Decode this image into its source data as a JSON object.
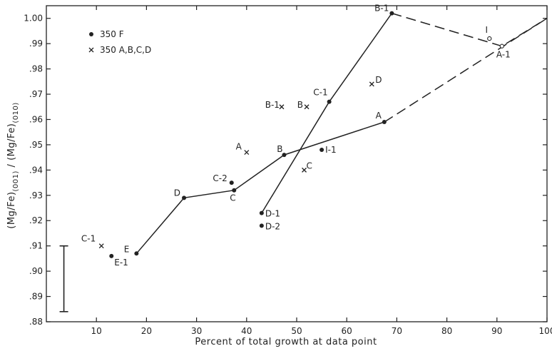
{
  "chart_data": {
    "type": "scatter",
    "title": "",
    "xlabel": "Percent of total growth at data point",
    "ylabel": "(Mg/Fe)(001) / (Mg/Fe)(010)",
    "ylabel_parts": {
      "a": "(Mg/Fe)",
      "a_sub": "(001)",
      "slash": " / ",
      "b": "(Mg/Fe)",
      "b_sub": "(010)"
    },
    "xlim": [
      0,
      100
    ],
    "ylim": [
      0.88,
      1.005
    ],
    "x_ticks": [
      10,
      20,
      30,
      40,
      50,
      60,
      70,
      80,
      90,
      100
    ],
    "y_ticks": [
      0.88,
      0.89,
      0.9,
      0.91,
      0.92,
      0.93,
      0.94,
      0.95,
      0.96,
      0.97,
      0.98,
      0.99,
      1.0
    ],
    "y_tick_labels": [
      ".88",
      ".89",
      ".90",
      ".91",
      ".92",
      ".93",
      ".94",
      ".95",
      ".96",
      ".97",
      ".98",
      ".99",
      "1.00"
    ],
    "grid": false,
    "legend_position": "top-left",
    "legend": [
      {
        "marker": "dot",
        "label": "350 F"
      },
      {
        "marker": "cross",
        "label": "350 A,B,C,D"
      }
    ],
    "series": [
      {
        "name": "350 F",
        "marker": "dot",
        "points": [
          {
            "label": "E",
            "x": 18,
            "y": 0.907
          },
          {
            "label": "E-1",
            "x": 13,
            "y": 0.906
          },
          {
            "label": "D",
            "x": 27.5,
            "y": 0.929
          },
          {
            "label": "C",
            "x": 37.5,
            "y": 0.932
          },
          {
            "label": "C-2",
            "x": 37,
            "y": 0.935
          },
          {
            "label": "B",
            "x": 47.5,
            "y": 0.946
          },
          {
            "label": "A",
            "x": 67.5,
            "y": 0.959
          },
          {
            "label": "I-1",
            "x": 55,
            "y": 0.948
          },
          {
            "label": "D-1",
            "x": 43,
            "y": 0.923
          },
          {
            "label": "D-2",
            "x": 43,
            "y": 0.918
          },
          {
            "label": "C-1",
            "x": 56.5,
            "y": 0.967
          },
          {
            "label": "B-1",
            "x": 69,
            "y": 1.002
          }
        ]
      },
      {
        "name": "350 A,B,C,D",
        "marker": "cross",
        "points": [
          {
            "label": "C-1",
            "x": 11,
            "y": 0.91
          },
          {
            "label": "A",
            "x": 40,
            "y": 0.947
          },
          {
            "label": "B-1",
            "x": 47,
            "y": 0.965
          },
          {
            "label": "B",
            "x": 52,
            "y": 0.965
          },
          {
            "label": "C",
            "x": 51.5,
            "y": 0.94
          },
          {
            "label": "D",
            "x": 65,
            "y": 0.974
          }
        ]
      },
      {
        "name": "",
        "marker": "open",
        "points": [
          {
            "label": "I",
            "x": 88.5,
            "y": 0.992
          },
          {
            "label": "A-1",
            "x": 91,
            "y": 0.989
          }
        ]
      }
    ],
    "lines": [
      {
        "style": "solid",
        "points": [
          [
            18,
            0.907
          ],
          [
            27.5,
            0.929
          ],
          [
            37.5,
            0.932
          ],
          [
            47.5,
            0.946
          ],
          [
            67.5,
            0.959
          ]
        ]
      },
      {
        "style": "dashed",
        "points": [
          [
            67.5,
            0.959
          ],
          [
            100,
            1.0
          ]
        ]
      },
      {
        "style": "solid",
        "points": [
          [
            43,
            0.923
          ],
          [
            56.5,
            0.967
          ],
          [
            69,
            1.002
          ]
        ]
      },
      {
        "style": "dashed",
        "points": [
          [
            69,
            1.002
          ],
          [
            91,
            0.989
          ],
          [
            100,
            1.0
          ]
        ]
      }
    ],
    "error_bar": {
      "x": 3.5,
      "y_low": 0.884,
      "y_high": 0.91
    }
  }
}
